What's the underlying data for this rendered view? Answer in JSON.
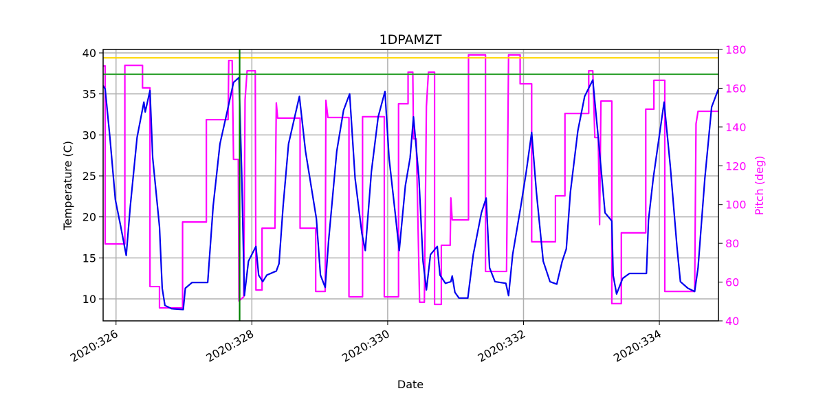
{
  "chart_data": {
    "type": "line",
    "title": "1DPAMZT",
    "xlabel": "Date",
    "ylabel": "Temperature (C)",
    "y2label": "Pitch (deg)",
    "xlim": [
      325.81,
      334.87
    ],
    "ylim": [
      7.32,
      40.42
    ],
    "y2lim": [
      40,
      180
    ],
    "xticks": [
      {
        "value": 326,
        "label": "2020:326"
      },
      {
        "value": 328,
        "label": "2020:328"
      },
      {
        "value": 330,
        "label": "2020:330"
      },
      {
        "value": 332,
        "label": "2020:332"
      },
      {
        "value": 334,
        "label": "2020:334"
      }
    ],
    "yticks": [
      10,
      15,
      20,
      25,
      30,
      35,
      40
    ],
    "y2ticks": [
      40,
      60,
      80,
      100,
      120,
      140,
      160,
      180
    ],
    "y2color": "#ff00ff",
    "grid": true,
    "hlines": [
      {
        "y": 39.4,
        "color": "#ffd700"
      },
      {
        "y": 37.4,
        "color": "#2ca02c"
      }
    ],
    "vlines": [
      {
        "x": 327.82,
        "color": "#008000"
      }
    ],
    "series": [
      {
        "color": "#ff00ff",
        "axis": "y2",
        "x": [
          325.81,
          325.84,
          325.84,
          326.13,
          326.13,
          326.39,
          326.39,
          326.5,
          326.5,
          326.64,
          326.64,
          326.98,
          326.98,
          327.33,
          327.33,
          327.65,
          327.66,
          327.71,
          327.73,
          327.8,
          327.81,
          327.88,
          327.9,
          327.93,
          328.05,
          328.06,
          328.15,
          328.15,
          328.34,
          328.36,
          328.38,
          328.71,
          328.71,
          328.94,
          328.94,
          329.08,
          329.09,
          329.12,
          329.43,
          329.43,
          329.63,
          329.63,
          329.95,
          329.95,
          330.16,
          330.16,
          330.3,
          330.3,
          330.37,
          330.38,
          330.42,
          330.47,
          330.54,
          330.57,
          330.6,
          330.69,
          330.69,
          330.79,
          330.79,
          330.92,
          330.93,
          330.95,
          331.19,
          331.19,
          331.44,
          331.44,
          331.75,
          331.78,
          331.95,
          331.95,
          332.12,
          332.12,
          332.47,
          332.47,
          332.61,
          332.61,
          332.96,
          332.96,
          333.02,
          333.05,
          333.1,
          333.12,
          333.14,
          333.3,
          333.3,
          333.44,
          333.44,
          333.8,
          333.8,
          333.92,
          333.92,
          334.08,
          334.08,
          334.52,
          334.54,
          334.57,
          334.87
        ],
        "values": [
          171.5,
          171.5,
          79.7,
          79.7,
          171.8,
          171.8,
          160.2,
          160.2,
          57.7,
          57.7,
          46.7,
          46.7,
          91.0,
          91.0,
          143.8,
          143.8,
          174.3,
          174.3,
          123.3,
          123.3,
          50.3,
          52.4,
          154.1,
          169.0,
          169.0,
          55.9,
          55.9,
          87.8,
          87.8,
          152.4,
          144.6,
          144.6,
          87.8,
          87.8,
          55.2,
          55.2,
          153.8,
          144.9,
          144.9,
          52.4,
          52.4,
          145.3,
          145.3,
          52.4,
          52.4,
          152.0,
          152.0,
          168.3,
          168.3,
          133.9,
          133.9,
          49.6,
          49.6,
          150.6,
          168.3,
          168.3,
          48.5,
          48.5,
          79.0,
          79.0,
          103.4,
          92.1,
          92.1,
          177.2,
          177.2,
          65.5,
          65.5,
          177.2,
          177.2,
          162.3,
          162.3,
          80.8,
          80.8,
          104.5,
          104.5,
          147.0,
          147.0,
          169.0,
          169.0,
          134.6,
          134.6,
          89.6,
          153.4,
          153.4,
          48.9,
          48.9,
          85.4,
          85.4,
          149.2,
          149.2,
          164.1,
          164.1,
          55.2,
          55.2,
          141.7,
          148.1,
          148.1
        ]
      },
      {
        "color": "#0000ee",
        "axis": "y",
        "x": [
          325.81,
          325.84,
          325.91,
          325.99,
          326.07,
          326.15,
          326.21,
          326.31,
          326.41,
          326.43,
          326.5,
          326.54,
          326.64,
          326.68,
          326.72,
          326.82,
          326.99,
          327.02,
          327.12,
          327.35,
          327.43,
          327.53,
          327.63,
          327.73,
          327.81,
          327.85,
          327.89,
          327.95,
          328.06,
          328.1,
          328.16,
          328.22,
          328.36,
          328.4,
          328.46,
          328.54,
          328.7,
          328.79,
          328.95,
          329.01,
          329.08,
          329.13,
          329.25,
          329.35,
          329.44,
          329.52,
          329.62,
          329.67,
          329.76,
          329.86,
          329.96,
          330.02,
          330.11,
          330.17,
          330.26,
          330.33,
          330.38,
          330.46,
          330.52,
          330.57,
          330.63,
          330.73,
          330.77,
          330.85,
          330.93,
          330.95,
          330.99,
          331.05,
          331.18,
          331.26,
          331.38,
          331.45,
          331.5,
          331.58,
          331.74,
          331.78,
          331.84,
          331.96,
          332.04,
          332.12,
          332.19,
          332.29,
          332.39,
          332.49,
          332.57,
          332.63,
          332.69,
          332.8,
          332.9,
          333.02,
          333.1,
          333.2,
          333.3,
          333.32,
          333.37,
          333.46,
          333.56,
          333.81,
          333.84,
          333.91,
          334.07,
          334.16,
          334.26,
          334.31,
          334.42,
          334.52,
          334.57,
          334.67,
          334.77,
          334.87
        ],
        "values": [
          36.0,
          35.6,
          29.7,
          22.1,
          18.8,
          15.3,
          21.3,
          29.7,
          34.0,
          32.8,
          35.4,
          27.2,
          18.8,
          11.3,
          9.2,
          8.8,
          8.7,
          11.3,
          12.0,
          12.0,
          21.3,
          28.9,
          32.6,
          36.4,
          37.0,
          25.5,
          10.4,
          14.6,
          16.4,
          12.9,
          12.1,
          12.9,
          13.4,
          14.3,
          21.3,
          28.9,
          34.7,
          28.0,
          19.8,
          12.9,
          11.4,
          17.1,
          28.0,
          33.0,
          35.0,
          24.7,
          18.0,
          15.9,
          25.5,
          32.2,
          35.3,
          27.2,
          20.5,
          15.9,
          23.8,
          27.2,
          32.2,
          24.7,
          14.6,
          11.1,
          15.4,
          16.4,
          12.9,
          11.9,
          12.1,
          12.8,
          10.8,
          10.1,
          10.1,
          15.4,
          20.5,
          22.3,
          13.8,
          12.1,
          11.9,
          10.4,
          15.4,
          21.3,
          25.5,
          30.3,
          23.0,
          14.6,
          12.1,
          11.8,
          14.6,
          16.1,
          23.0,
          30.5,
          34.7,
          36.7,
          29.7,
          20.5,
          19.5,
          12.9,
          10.6,
          12.5,
          13.1,
          13.1,
          19.6,
          24.7,
          34.0,
          26.3,
          16.3,
          12.1,
          11.3,
          10.9,
          13.8,
          24.7,
          33.4,
          35.6
        ]
      }
    ]
  }
}
